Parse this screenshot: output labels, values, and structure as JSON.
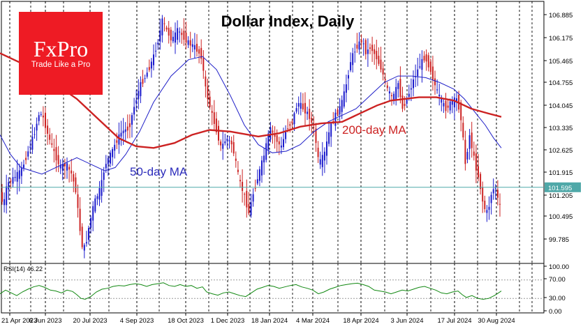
{
  "chart_data": [
    {
      "type": "candlestick",
      "title": "Dollar Index, Daily",
      "ylim": [
        99.35,
        107.2
      ],
      "y_ticks": [
        "106.885",
        "106.175",
        "105.465",
        "104.755",
        "104.045",
        "103.335",
        "102.625",
        "101.915",
        "101.205",
        "100.495",
        "99.785"
      ],
      "x_ticks": [
        "21 Apr 2023",
        "6 Jun 2023",
        "20 Jul 2023",
        "4 Sep 2023",
        "18 Oct 2023",
        "1 Dec 2023",
        "18 Jan 2024",
        "4 Mar 2024",
        "18 Apr 2024",
        "3 Jun 2024",
        "17 Jul 2024",
        "30 Aug 2024"
      ],
      "price_path": [
        [
          0,
          101.6
        ],
        [
          6,
          101.0
        ],
        [
          12,
          101.7
        ],
        [
          22,
          101.9
        ],
        [
          32,
          102.1
        ],
        [
          40,
          102.6
        ],
        [
          50,
          103.2
        ],
        [
          58,
          103.9
        ],
        [
          64,
          103.7
        ],
        [
          70,
          103.2
        ],
        [
          80,
          102.6
        ],
        [
          88,
          102.2
        ],
        [
          96,
          102.3
        ],
        [
          104,
          102.0
        ],
        [
          110,
          101.5
        ],
        [
          116,
          100.3
        ],
        [
          120,
          99.7
        ],
        [
          124,
          99.8
        ],
        [
          128,
          100.3
        ],
        [
          136,
          101.1
        ],
        [
          146,
          101.6
        ],
        [
          152,
          102.3
        ],
        [
          160,
          102.6
        ],
        [
          168,
          103.0
        ],
        [
          176,
          103.3
        ],
        [
          186,
          103.4
        ],
        [
          194,
          104.1
        ],
        [
          202,
          104.7
        ],
        [
          210,
          105.0
        ],
        [
          220,
          105.5
        ],
        [
          228,
          106.1
        ],
        [
          234,
          106.7
        ],
        [
          240,
          106.4
        ],
        [
          248,
          106.1
        ],
        [
          256,
          106.4
        ],
        [
          264,
          106.2
        ],
        [
          272,
          106.0
        ],
        [
          280,
          105.9
        ],
        [
          290,
          105.6
        ],
        [
          296,
          104.6
        ],
        [
          304,
          103.9
        ],
        [
          312,
          103.3
        ],
        [
          318,
          102.8
        ],
        [
          326,
          103.1
        ],
        [
          334,
          102.9
        ],
        [
          344,
          101.8
        ],
        [
          352,
          101.3
        ],
        [
          358,
          100.8
        ],
        [
          364,
          101.4
        ],
        [
          372,
          102.0
        ],
        [
          380,
          102.6
        ],
        [
          388,
          103.4
        ],
        [
          396,
          103.1
        ],
        [
          404,
          102.8
        ],
        [
          412,
          103.4
        ],
        [
          420,
          103.6
        ],
        [
          428,
          104.2
        ],
        [
          436,
          104.0
        ],
        [
          444,
          103.8
        ],
        [
          452,
          103.3
        ],
        [
          458,
          102.3
        ],
        [
          466,
          102.6
        ],
        [
          474,
          103.4
        ],
        [
          482,
          103.8
        ],
        [
          490,
          104.1
        ],
        [
          496,
          104.6
        ],
        [
          504,
          105.5
        ],
        [
          512,
          105.9
        ],
        [
          520,
          106.1
        ],
        [
          526,
          105.7
        ],
        [
          532,
          105.9
        ],
        [
          540,
          105.6
        ],
        [
          548,
          105.2
        ],
        [
          556,
          104.6
        ],
        [
          564,
          104.3
        ],
        [
          572,
          104.8
        ],
        [
          578,
          104.0
        ],
        [
          586,
          104.4
        ],
        [
          594,
          104.9
        ],
        [
          602,
          105.3
        ],
        [
          610,
          105.6
        ],
        [
          618,
          105.2
        ],
        [
          626,
          104.6
        ],
        [
          634,
          104.2
        ],
        [
          640,
          104.0
        ],
        [
          648,
          104.2
        ],
        [
          656,
          104.3
        ],
        [
          662,
          103.7
        ],
        [
          668,
          102.3
        ],
        [
          674,
          103.2
        ],
        [
          682,
          102.3
        ],
        [
          688,
          101.8
        ],
        [
          694,
          101.0
        ],
        [
          700,
          100.8
        ],
        [
          706,
          101.5
        ],
        [
          712,
          101.6
        ],
        [
          716,
          101.0
        ]
      ],
      "series": [
        {
          "name": "50-day MA",
          "path": [
            [
              0,
              103.2
            ],
            [
              15,
              102.6
            ],
            [
              30,
              102.2
            ],
            [
              60,
              102.0
            ],
            [
              90,
              102.3
            ],
            [
              110,
              102.5
            ],
            [
              130,
              102.3
            ],
            [
              150,
              102.1
            ],
            [
              165,
              102.2
            ],
            [
              180,
              102.6
            ],
            [
              200,
              103.3
            ],
            [
              220,
              104.2
            ],
            [
              245,
              105.0
            ],
            [
              270,
              105.5
            ],
            [
              290,
              105.6
            ],
            [
              310,
              105.2
            ],
            [
              330,
              104.4
            ],
            [
              350,
              103.5
            ],
            [
              370,
              102.9
            ],
            [
              390,
              102.65
            ],
            [
              410,
              102.7
            ],
            [
              430,
              102.9
            ],
            [
              450,
              103.3
            ],
            [
              470,
              103.6
            ],
            [
              490,
              103.8
            ],
            [
              510,
              104.0
            ],
            [
              530,
              104.4
            ],
            [
              550,
              104.8
            ],
            [
              570,
              105.0
            ],
            [
              590,
              105.0
            ],
            [
              610,
              104.95
            ],
            [
              630,
              104.8
            ],
            [
              650,
              104.6
            ],
            [
              665,
              104.3
            ],
            [
              680,
              103.9
            ],
            [
              695,
              103.5
            ],
            [
              707,
              103.1
            ],
            [
              718,
              102.8
            ]
          ],
          "color": "#1d1dc7"
        },
        {
          "name": "200-day MA",
          "path": [
            [
              0,
              105.7
            ],
            [
              30,
              105.4
            ],
            [
              60,
              105.0
            ],
            [
              90,
              104.6
            ],
            [
              110,
              104.3
            ],
            [
              130,
              103.9
            ],
            [
              150,
              103.5
            ],
            [
              170,
              103.1
            ],
            [
              195,
              102.85
            ],
            [
              220,
              102.8
            ],
            [
              250,
              102.95
            ],
            [
              275,
              103.2
            ],
            [
              300,
              103.35
            ],
            [
              330,
              103.3
            ],
            [
              370,
              103.15
            ],
            [
              400,
              103.25
            ],
            [
              430,
              103.45
            ],
            [
              460,
              103.55
            ],
            [
              490,
              103.6
            ],
            [
              520,
              103.9
            ],
            [
              540,
              104.1
            ],
            [
              560,
              104.25
            ],
            [
              580,
              104.3
            ],
            [
              600,
              104.35
            ],
            [
              625,
              104.35
            ],
            [
              650,
              104.25
            ],
            [
              675,
              104.0
            ],
            [
              700,
              103.85
            ],
            [
              718,
              103.75
            ]
          ],
          "color": "#cc2222"
        }
      ],
      "last_price": "101.595",
      "annotations": [
        "200-day MA",
        "50-day MA"
      ]
    },
    {
      "type": "line",
      "title": "RSI(14) 46.22",
      "ylim": [
        0,
        100
      ],
      "y_ticks": [
        "100.00",
        "70.00",
        "30.00",
        "0.00"
      ],
      "levels": [
        30,
        70
      ],
      "path": [
        [
          0,
          40
        ],
        [
          8,
          48
        ],
        [
          16,
          42
        ],
        [
          24,
          36
        ],
        [
          32,
          44
        ],
        [
          40,
          50
        ],
        [
          48,
          55
        ],
        [
          56,
          58
        ],
        [
          64,
          54
        ],
        [
          72,
          48
        ],
        [
          80,
          46
        ],
        [
          88,
          42
        ],
        [
          96,
          48
        ],
        [
          104,
          45
        ],
        [
          110,
          38
        ],
        [
          116,
          30
        ],
        [
          122,
          28
        ],
        [
          130,
          34
        ],
        [
          138,
          44
        ],
        [
          146,
          50
        ],
        [
          154,
          52
        ],
        [
          162,
          56
        ],
        [
          170,
          58
        ],
        [
          178,
          57
        ],
        [
          186,
          60
        ],
        [
          194,
          62
        ],
        [
          202,
          60
        ],
        [
          210,
          56
        ],
        [
          218,
          60
        ],
        [
          226,
          62
        ],
        [
          234,
          64
        ],
        [
          242,
          58
        ],
        [
          250,
          56
        ],
        [
          258,
          60
        ],
        [
          266,
          56
        ],
        [
          274,
          58
        ],
        [
          282,
          52
        ],
        [
          290,
          55
        ],
        [
          296,
          44
        ],
        [
          304,
          40
        ],
        [
          312,
          37
        ],
        [
          320,
          42
        ],
        [
          328,
          44
        ],
        [
          336,
          40
        ],
        [
          344,
          36
        ],
        [
          352,
          34
        ],
        [
          360,
          42
        ],
        [
          368,
          50
        ],
        [
          376,
          54
        ],
        [
          384,
          58
        ],
        [
          392,
          56
        ],
        [
          400,
          52
        ],
        [
          408,
          55
        ],
        [
          416,
          58
        ],
        [
          424,
          60
        ],
        [
          432,
          55
        ],
        [
          440,
          52
        ],
        [
          448,
          48
        ],
        [
          456,
          40
        ],
        [
          464,
          44
        ],
        [
          472,
          50
        ],
        [
          480,
          54
        ],
        [
          488,
          58
        ],
        [
          496,
          60
        ],
        [
          504,
          62
        ],
        [
          512,
          63
        ],
        [
          520,
          60
        ],
        [
          528,
          56
        ],
        [
          536,
          48
        ],
        [
          544,
          46
        ],
        [
          552,
          44
        ],
        [
          560,
          40
        ],
        [
          568,
          44
        ],
        [
          576,
          48
        ],
        [
          584,
          46
        ],
        [
          592,
          50
        ],
        [
          600,
          54
        ],
        [
          608,
          56
        ],
        [
          616,
          52
        ],
        [
          624,
          48
        ],
        [
          632,
          42
        ],
        [
          640,
          40
        ],
        [
          648,
          44
        ],
        [
          656,
          46
        ],
        [
          662,
          38
        ],
        [
          668,
          32
        ],
        [
          676,
          36
        ],
        [
          684,
          30
        ],
        [
          692,
          28
        ],
        [
          700,
          30
        ],
        [
          708,
          36
        ],
        [
          714,
          42
        ],
        [
          718,
          46
        ]
      ],
      "color": "#118811"
    }
  ]
}
